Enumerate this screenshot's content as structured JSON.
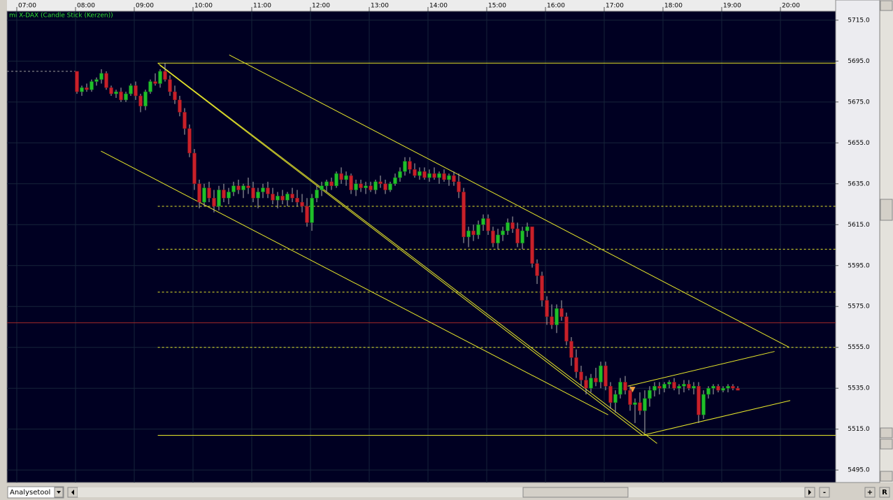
{
  "chart_data": {
    "type": "candlestick",
    "title": "mi X-DAX (Candle Stick (Kerzen))",
    "xlim": [
      410,
      1256.4
    ],
    "ylim": [
      5488.9,
      5719.4
    ],
    "xticks": [
      {
        "value": 420,
        "label": "07:00"
      },
      {
        "value": 480,
        "label": "08:00"
      },
      {
        "value": 540,
        "label": "09:00"
      },
      {
        "value": 600,
        "label": "10:00"
      },
      {
        "value": 660,
        "label": "11:00"
      },
      {
        "value": 720,
        "label": "12:00"
      },
      {
        "value": 780,
        "label": "13:00"
      },
      {
        "value": 840,
        "label": "14:00"
      },
      {
        "value": 900,
        "label": "15:00"
      },
      {
        "value": 960,
        "label": "16:00"
      },
      {
        "value": 1020,
        "label": "17:00"
      },
      {
        "value": 1080,
        "label": "18:00"
      },
      {
        "value": 1140,
        "label": "19:00"
      },
      {
        "value": 1200,
        "label": "20:00"
      }
    ],
    "yticks": [
      {
        "value": 5715,
        "label": "5715.0"
      },
      {
        "value": 5695,
        "label": "5695.0"
      },
      {
        "value": 5675,
        "label": "5675.0"
      },
      {
        "value": 5655,
        "label": "5655.0"
      },
      {
        "value": 5635,
        "label": "5635.0"
      },
      {
        "value": 5615,
        "label": "5615.0"
      },
      {
        "value": 5595,
        "label": "5595.0"
      },
      {
        "value": 5575,
        "label": "5575.0"
      },
      {
        "value": 5555,
        "label": "5555.0"
      },
      {
        "value": 5535,
        "label": "5535.0"
      },
      {
        "value": 5515,
        "label": "5515.0"
      },
      {
        "value": 5495,
        "label": "5495.0"
      }
    ],
    "grid": true,
    "up_color": "#1fbf2a",
    "down_color": "#c8202a",
    "wick_color": "#b0b0b0",
    "line_color": "#e6e62a",
    "x": [
      480,
      485,
      490,
      495,
      500,
      505,
      510,
      515,
      520,
      525,
      530,
      535,
      540,
      545,
      550,
      555,
      560,
      565,
      570,
      575,
      580,
      585,
      590,
      595,
      600,
      605,
      610,
      615,
      620,
      625,
      630,
      635,
      640,
      645,
      650,
      655,
      660,
      665,
      670,
      675,
      680,
      685,
      690,
      695,
      700,
      705,
      710,
      715,
      720,
      725,
      730,
      735,
      740,
      745,
      750,
      755,
      760,
      765,
      770,
      775,
      780,
      785,
      790,
      795,
      800,
      805,
      810,
      815,
      820,
      825,
      830,
      835,
      840,
      845,
      850,
      855,
      860,
      865,
      870,
      875,
      880,
      885,
      890,
      895,
      900,
      905,
      910,
      915,
      920,
      925,
      930,
      935,
      940,
      945,
      950,
      955,
      960,
      965,
      970,
      975,
      980,
      985,
      990,
      995,
      1000,
      1005,
      1010,
      1015,
      1020,
      1025,
      1030,
      1035,
      1040,
      1045,
      1050,
      1055,
      1060,
      1065,
      1070,
      1075,
      1080,
      1085,
      1090,
      1095,
      1100,
      1105,
      1110,
      1115,
      1120,
      1125,
      1130,
      1135,
      1140,
      1145,
      1150,
      1155
    ],
    "ohlc": [
      [
        5690,
        5690,
        5679,
        5680
      ],
      [
        5680,
        5683,
        5678,
        5682
      ],
      [
        5682,
        5684,
        5680,
        5681
      ],
      [
        5681,
        5686,
        5680,
        5685
      ],
      [
        5685,
        5687,
        5683,
        5686
      ],
      [
        5686,
        5691,
        5684,
        5689
      ],
      [
        5689,
        5690,
        5681,
        5682
      ],
      [
        5682,
        5683,
        5678,
        5679
      ],
      [
        5679,
        5681,
        5677,
        5680
      ],
      [
        5680,
        5682,
        5675,
        5676
      ],
      [
        5676,
        5680,
        5675,
        5679
      ],
      [
        5679,
        5684,
        5678,
        5683
      ],
      [
        5683,
        5685,
        5676,
        5678
      ],
      [
        5678,
        5679,
        5670,
        5673
      ],
      [
        5673,
        5681,
        5671,
        5680
      ],
      [
        5680,
        5686,
        5679,
        5685
      ],
      [
        5685,
        5689,
        5683,
        5684
      ],
      [
        5684,
        5691,
        5682,
        5690
      ],
      [
        5690,
        5694,
        5685,
        5686
      ],
      [
        5686,
        5688,
        5678,
        5680
      ],
      [
        5680,
        5683,
        5674,
        5676
      ],
      [
        5676,
        5678,
        5668,
        5670
      ],
      [
        5670,
        5672,
        5659,
        5662
      ],
      [
        5662,
        5664,
        5648,
        5650
      ],
      [
        5650,
        5652,
        5632,
        5635
      ],
      [
        5635,
        5637,
        5623,
        5626
      ],
      [
        5626,
        5635,
        5624,
        5633
      ],
      [
        5633,
        5636,
        5626,
        5628
      ],
      [
        5628,
        5632,
        5621,
        5624
      ],
      [
        5624,
        5634,
        5622,
        5632
      ],
      [
        5632,
        5635,
        5626,
        5628
      ],
      [
        5628,
        5633,
        5625,
        5631
      ],
      [
        5631,
        5636,
        5629,
        5634
      ],
      [
        5634,
        5637,
        5630,
        5632
      ],
      [
        5632,
        5635,
        5628,
        5634
      ],
      [
        5634,
        5638,
        5630,
        5633
      ],
      [
        5633,
        5636,
        5626,
        5628
      ],
      [
        5628,
        5633,
        5623,
        5631
      ],
      [
        5631,
        5635,
        5628,
        5633
      ],
      [
        5633,
        5636,
        5628,
        5630
      ],
      [
        5630,
        5633,
        5625,
        5627
      ],
      [
        5627,
        5631,
        5623,
        5629
      ],
      [
        5629,
        5632,
        5625,
        5627
      ],
      [
        5627,
        5631,
        5624,
        5630
      ],
      [
        5630,
        5633,
        5626,
        5628
      ],
      [
        5628,
        5632,
        5624,
        5626
      ],
      [
        5626,
        5630,
        5621,
        5624
      ],
      [
        5624,
        5628,
        5614,
        5616
      ],
      [
        5616,
        5630,
        5612,
        5628
      ],
      [
        5628,
        5634,
        5626,
        5632
      ],
      [
        5632,
        5636,
        5629,
        5634
      ],
      [
        5634,
        5637,
        5631,
        5636
      ],
      [
        5636,
        5638,
        5632,
        5634
      ],
      [
        5634,
        5641,
        5633,
        5640
      ],
      [
        5640,
        5643,
        5635,
        5637
      ],
      [
        5637,
        5641,
        5634,
        5639
      ],
      [
        5639,
        5640,
        5630,
        5632
      ],
      [
        5632,
        5637,
        5629,
        5635
      ],
      [
        5635,
        5637,
        5631,
        5633
      ],
      [
        5633,
        5636,
        5630,
        5634
      ],
      [
        5634,
        5636,
        5631,
        5632
      ],
      [
        5632,
        5637,
        5630,
        5636
      ],
      [
        5636,
        5639,
        5633,
        5635
      ],
      [
        5635,
        5637,
        5630,
        5632
      ],
      [
        5632,
        5636,
        5631,
        5635
      ],
      [
        5635,
        5640,
        5634,
        5638
      ],
      [
        5638,
        5643,
        5636,
        5641
      ],
      [
        5641,
        5648,
        5639,
        5646
      ],
      [
        5646,
        5648,
        5640,
        5642
      ],
      [
        5642,
        5645,
        5638,
        5639
      ],
      [
        5639,
        5643,
        5637,
        5641
      ],
      [
        5641,
        5643,
        5637,
        5638
      ],
      [
        5638,
        5642,
        5636,
        5640
      ],
      [
        5640,
        5643,
        5637,
        5638
      ],
      [
        5638,
        5641,
        5635,
        5640
      ],
      [
        5640,
        5642,
        5636,
        5637
      ],
      [
        5637,
        5640,
        5634,
        5639
      ],
      [
        5639,
        5641,
        5634,
        5636
      ],
      [
        5636,
        5640,
        5628,
        5631
      ],
      [
        5631,
        5633,
        5606,
        5609
      ],
      [
        5609,
        5614,
        5604,
        5612
      ],
      [
        5612,
        5615,
        5607,
        5610
      ],
      [
        5610,
        5617,
        5608,
        5615
      ],
      [
        5615,
        5620,
        5612,
        5618
      ],
      [
        5618,
        5620,
        5610,
        5612
      ],
      [
        5612,
        5614,
        5604,
        5606
      ],
      [
        5606,
        5613,
        5603,
        5610
      ],
      [
        5610,
        5614,
        5607,
        5612
      ],
      [
        5612,
        5618,
        5610,
        5616
      ],
      [
        5616,
        5619,
        5611,
        5613
      ],
      [
        5613,
        5616,
        5604,
        5606
      ],
      [
        5606,
        5614,
        5603,
        5612
      ],
      [
        5612,
        5616,
        5609,
        5614
      ],
      [
        5614,
        5614,
        5594,
        5596
      ],
      [
        5596,
        5598,
        5586,
        5590
      ],
      [
        5590,
        5592,
        5575,
        5578
      ],
      [
        5578,
        5580,
        5566,
        5570
      ],
      [
        5570,
        5576,
        5564,
        5566
      ],
      [
        5566,
        5576,
        5562,
        5574
      ],
      [
        5574,
        5578,
        5568,
        5570
      ],
      [
        5570,
        5572,
        5556,
        5558
      ],
      [
        5558,
        5560,
        5546,
        5550
      ],
      [
        5550,
        5554,
        5540,
        5543
      ],
      [
        5543,
        5546,
        5536,
        5539
      ],
      [
        5539,
        5541,
        5532,
        5535
      ],
      [
        5535,
        5542,
        5533,
        5540
      ],
      [
        5540,
        5545,
        5536,
        5538
      ],
      [
        5538,
        5548,
        5535,
        5546
      ],
      [
        5546,
        5548,
        5534,
        5536
      ],
      [
        5536,
        5538,
        5525,
        5528
      ],
      [
        5528,
        5534,
        5523,
        5532
      ],
      [
        5532,
        5540,
        5530,
        5538
      ],
      [
        5538,
        5541,
        5532,
        5534
      ],
      [
        5534,
        5536,
        5524,
        5527
      ],
      [
        5527,
        5530,
        5518,
        5528
      ],
      [
        5528,
        5533,
        5522,
        5524
      ],
      [
        5524,
        5534,
        5513,
        5530
      ],
      [
        5530,
        5536,
        5526,
        5534
      ],
      [
        5534,
        5538,
        5531,
        5536
      ],
      [
        5536,
        5538,
        5532,
        5535
      ],
      [
        5535,
        5538,
        5533,
        5537
      ],
      [
        5537,
        5539,
        5535,
        5538
      ],
      [
        5538,
        5540,
        5534,
        5535
      ],
      [
        5535,
        5537,
        5532,
        5536
      ],
      [
        5536,
        5539,
        5533,
        5537
      ],
      [
        5537,
        5539,
        5534,
        5535
      ],
      [
        5535,
        5538,
        5532,
        5536
      ],
      [
        5536,
        5538,
        5518,
        5522
      ],
      [
        5522,
        5534,
        5520,
        5532
      ],
      [
        5532,
        5536,
        5530,
        5535
      ],
      [
        5535,
        5537,
        5532,
        5536
      ],
      [
        5536,
        5537,
        5533,
        5534
      ],
      [
        5534,
        5536,
        5533,
        5535
      ],
      [
        5535,
        5537,
        5533,
        5536
      ],
      [
        5536,
        5537,
        5534,
        5535
      ],
      [
        5535,
        5536,
        5534,
        5534
      ]
    ],
    "levels": [
      {
        "value": 5690,
        "from": 410,
        "to": 480,
        "color": "#9a9a9a",
        "dash": true
      },
      {
        "value": 5694,
        "from": 564,
        "color": "#e6e62a",
        "dash": false
      },
      {
        "value": 5624,
        "from": 564,
        "color": "#e6e62a",
        "dash": true
      },
      {
        "value": 5603,
        "from": 564,
        "color": "#e6e62a",
        "dash": true
      },
      {
        "value": 5582,
        "from": 564,
        "color": "#e6e62a",
        "dash": true
      },
      {
        "value": 5567,
        "from": 410,
        "color": "#a02828",
        "dash": false
      },
      {
        "value": 5555,
        "from": 564,
        "color": "#e6e62a",
        "dash": true
      },
      {
        "value": 5512,
        "from": 564,
        "color": "#e6e62a",
        "dash": false
      }
    ],
    "trendlines": [
      {
        "x": [
          564,
          1074
        ],
        "y": [
          5694,
          5508
        ]
      },
      {
        "x": [
          637,
          1209
        ],
        "y": [
          5698,
          5555
        ]
      },
      {
        "x": [
          506,
          1024
        ],
        "y": [
          5651,
          5522
        ]
      },
      {
        "x": [
          566,
          1059
        ],
        "y": [
          5693,
          5512
        ]
      },
      {
        "x": [
          1044,
          1194
        ],
        "y": [
          5536,
          5553
        ]
      },
      {
        "x": [
          1059,
          1210
        ],
        "y": [
          5512,
          5529
        ]
      }
    ],
    "marker": {
      "x": 1049,
      "y": 5534,
      "color": "#f0a040"
    }
  },
  "ui": {
    "tool": "Analysetool",
    "minus": "-",
    "plus": "+",
    "reset": "R"
  }
}
